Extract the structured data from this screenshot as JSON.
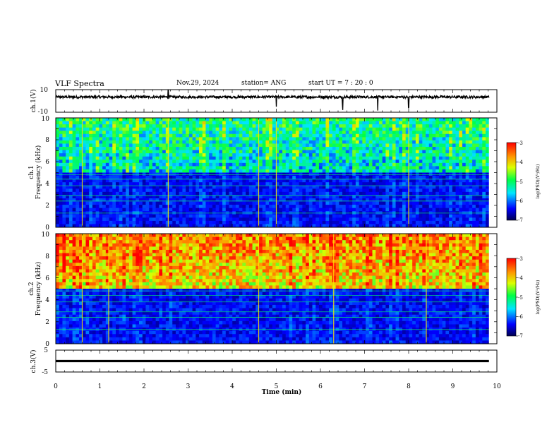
{
  "header": {
    "title": "VLF Spectra",
    "date": "Nov.29, 2024",
    "station": "station= ANG",
    "start": "start  UT =   7 : 20 : 0"
  },
  "chart_data": [
    {
      "type": "line",
      "panel": "ch1-waveform",
      "ylabel": "ch.1(V)",
      "ylim": [
        -10,
        10
      ],
      "yticks": [
        "10",
        "-10"
      ],
      "xlim": [
        0,
        10
      ],
      "baseline": 3.5
    },
    {
      "type": "heatmap",
      "panel": "ch1-spectrogram",
      "ylabel_top": "ch.1",
      "ylabel": "Frequency (kHz)",
      "ylim": [
        0,
        10
      ],
      "yticks": [
        "0",
        "2",
        "4",
        "6",
        "8",
        "10"
      ],
      "xlim": [
        0,
        10
      ],
      "colorbar": {
        "label": "log(PSD)(V²/Hz)",
        "range": [
          -7,
          -3
        ],
        "ticks": [
          "-3",
          "-4",
          "-5",
          "-6",
          "-7"
        ]
      },
      "noise_floor_kHz": 5
    },
    {
      "type": "heatmap",
      "panel": "ch2-spectrogram",
      "ylabel_top": "ch.2",
      "ylabel": "Frequency (kHz)",
      "ylim": [
        0,
        10
      ],
      "yticks": [
        "0",
        "2",
        "4",
        "6",
        "8",
        "10"
      ],
      "xlim": [
        0,
        10
      ],
      "colorbar": {
        "label": "log(PSD)(V²/Hz)",
        "range": [
          -7,
          -3
        ],
        "ticks": [
          "-3",
          "-4",
          "-5",
          "-6",
          "-7"
        ]
      },
      "noise_floor_kHz": 5
    },
    {
      "type": "line",
      "panel": "ch3-waveform",
      "ylabel": "ch.3(V)",
      "ylim": [
        -5,
        5
      ],
      "yticks": [
        "5",
        "-5"
      ],
      "xlim": [
        0,
        10
      ],
      "baseline": 0
    }
  ],
  "xaxis": {
    "label": "Time  (min)",
    "ticks": [
      "0",
      "1",
      "2",
      "3",
      "4",
      "5",
      "6",
      "7",
      "8",
      "9",
      "10"
    ],
    "data_end_min": 9.82
  },
  "colors": {
    "colormap": [
      "#00003c",
      "#0000b4",
      "#0050ff",
      "#00dcff",
      "#00ff64",
      "#b4ff00",
      "#ffff00",
      "#ff9600",
      "#ff0000"
    ],
    "axis": "#000000",
    "background": "#ffffff"
  }
}
